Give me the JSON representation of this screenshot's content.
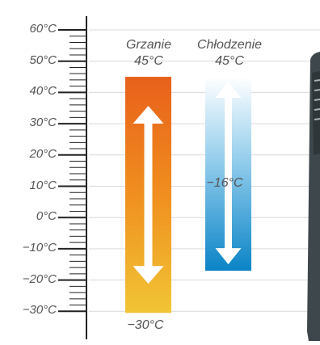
{
  "scale": {
    "ticks": [
      "60°C",
      "50°C",
      "40°C",
      "30°C",
      "20°C",
      "10°C",
      "0°C",
      "−10°C",
      "−20°C",
      "−30°C"
    ]
  },
  "heating": {
    "label": "Grzanie",
    "max_label": "45°C",
    "min_label": "−30°C",
    "max_c": 45,
    "min_c": -30,
    "color_top": "#e8601b",
    "color_bottom": "#f1c535"
  },
  "cooling": {
    "label": "Chłodzenie",
    "max_label": "45°C",
    "min_label": "−16°C",
    "max_c": 45,
    "min_c": -16,
    "color_top": "#ffffff",
    "color_bottom": "#0a84c6"
  },
  "colors": {
    "axis": "#222222",
    "gridline": "#d9d9d9",
    "text": "#555555",
    "device_body": "#3e474c"
  }
}
